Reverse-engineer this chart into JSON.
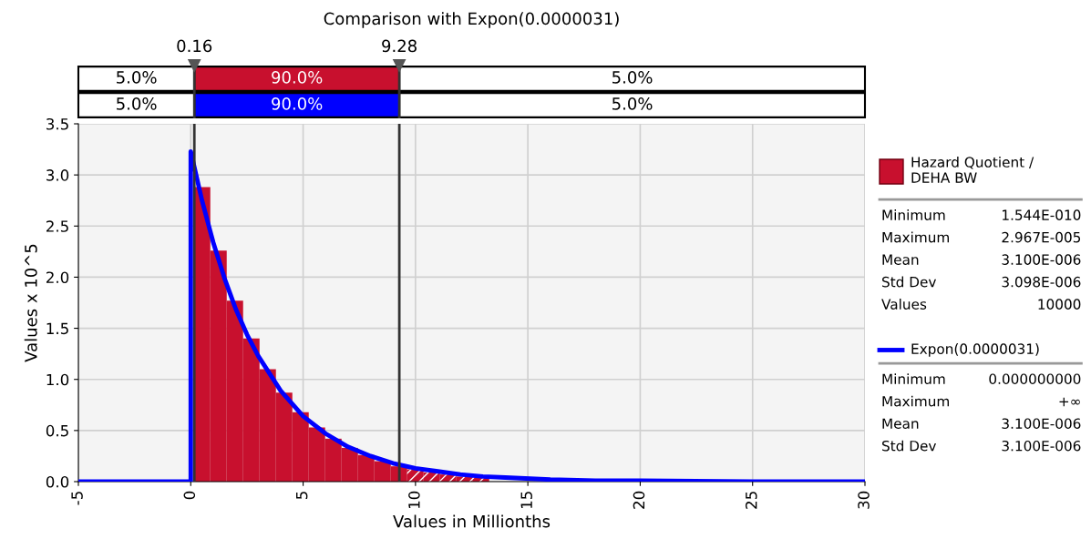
{
  "chart_data": {
    "type": "histogram",
    "title": "Comparison with Expon(0.0000031)",
    "xlabel": "Values in Millionths",
    "ylabel": "Values x 10^5",
    "series": [
      {
        "name": "Hazard Quotient / DEHA BW",
        "color": "#c8102e",
        "bins": [
          0.14,
          0.87,
          1.6,
          2.33,
          3.06,
          3.79,
          4.52,
          5.25,
          5.98,
          6.71,
          7.44,
          8.17,
          8.9,
          9.63,
          10.36,
          11.09,
          11.82,
          12.55,
          13.28,
          14.01
        ],
        "values": [
          2.88,
          2.26,
          1.77,
          1.4,
          1.1,
          0.87,
          0.68,
          0.53,
          0.42,
          0.33,
          0.26,
          0.2,
          0.15,
          0.12,
          0.09,
          0.07,
          0.05,
          0.04,
          null
        ]
      },
      {
        "name": "Expon(0.0000031)",
        "type": "line",
        "color": "#0000ff",
        "x": [
          -5,
          0,
          0,
          0.5,
          1,
          1.5,
          2,
          2.5,
          3,
          4,
          5,
          6,
          7,
          8,
          9,
          10,
          11,
          12,
          13,
          14,
          16,
          18,
          20,
          25,
          30
        ],
        "values": [
          0,
          0,
          3.23,
          2.75,
          2.34,
          1.99,
          1.69,
          1.44,
          1.23,
          0.89,
          0.64,
          0.47,
          0.34,
          0.25,
          0.18,
          0.13,
          0.1,
          0.07,
          0.05,
          0.04,
          0.02,
          0.01,
          0.01,
          0,
          0
        ]
      }
    ],
    "xlim": [
      -5,
      30
    ],
    "xticks": [
      -5,
      0,
      5,
      10,
      15,
      20,
      25,
      30
    ],
    "ylim": [
      0,
      3.5
    ],
    "yticks": [
      {
        "value": 0,
        "label": "0.0"
      },
      {
        "value": 0.5,
        "label": "0.5"
      },
      {
        "value": 1,
        "label": "1.0"
      },
      {
        "value": 1.5,
        "label": "1.5"
      },
      {
        "value": 2,
        "label": "2.0"
      },
      {
        "value": 2.5,
        "label": "2.5"
      },
      {
        "value": 3,
        "label": "3.0"
      },
      {
        "value": 3.5,
        "label": "3.5"
      }
    ],
    "ref_lines": [
      {
        "axis": "x",
        "value": 0.16,
        "label": "0.16",
        "color": "#333333"
      },
      {
        "axis": "x",
        "value": 9.28,
        "label": "9.28",
        "color": "#333333"
      }
    ],
    "annotations": [
      "5.0%",
      "90.0%",
      "5.0%",
      "5.0%",
      "90.0%",
      "5.0%",
      "Minimum",
      "1.544E-010",
      "Maximum",
      "2.967E-005",
      "Mean",
      "3.100E-006",
      "Std Dev",
      "3.098E-006",
      "Values",
      "10000",
      "Minimum",
      "0.000000000",
      "Maximum",
      "+∞",
      "Mean",
      "3.100E-006",
      "Std Dev",
      "3.100E-006"
    ],
    "grid": true,
    "legend": "right"
  }
}
